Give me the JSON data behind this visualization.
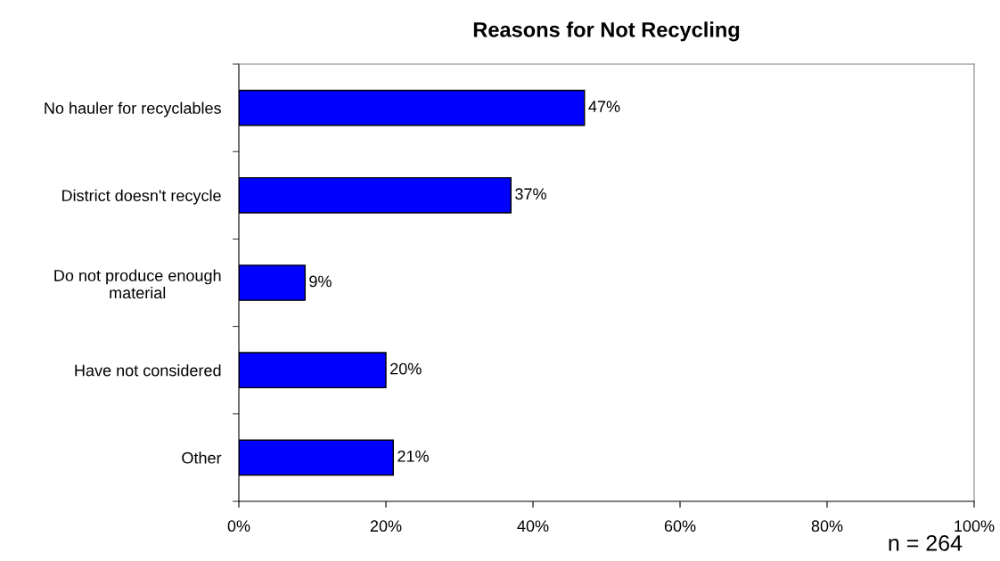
{
  "chart_data": {
    "type": "bar",
    "orientation": "horizontal",
    "title": "Reasons for Not Recycling",
    "categories": [
      "No hauler for recyclables",
      "District doesn't recycle",
      "Do not produce enough\nmaterial",
      "Have not considered",
      "Other"
    ],
    "values": [
      47,
      37,
      9,
      20,
      21
    ],
    "value_labels": [
      "47%",
      "37%",
      "9%",
      "20%",
      "21%"
    ],
    "color": "#0000ff",
    "xlim": [
      0,
      100
    ],
    "xticks": [
      {
        "value": 0,
        "label": "0%"
      },
      {
        "value": 20,
        "label": "20%"
      },
      {
        "value": 40,
        "label": "40%"
      },
      {
        "value": 60,
        "label": "60%"
      },
      {
        "value": 80,
        "label": "80%"
      },
      {
        "value": 100,
        "label": "100%"
      }
    ],
    "grid": false,
    "legend": false,
    "annotations": [
      "n = 264"
    ]
  }
}
